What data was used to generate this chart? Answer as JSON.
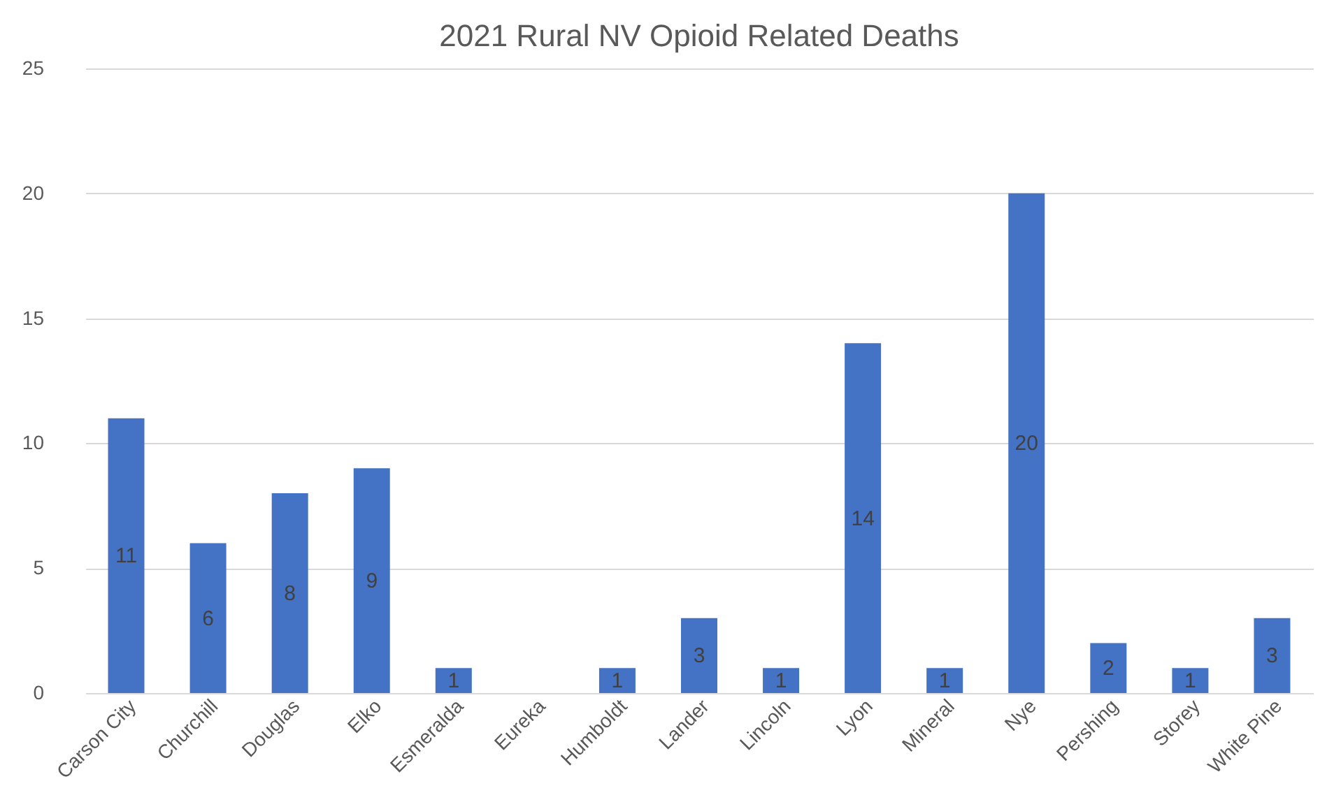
{
  "chart_data": {
    "type": "bar",
    "title": "2021 Rural NV Opioid Related Deaths",
    "categories": [
      "Carson City",
      "Churchill",
      "Douglas",
      "Elko",
      "Esmeralda",
      "Eureka",
      "Humboldt",
      "Lander",
      "Lincoln",
      "Lyon",
      "Mineral",
      "Nye",
      "Pershing",
      "Storey",
      "White Pine"
    ],
    "values": [
      11,
      6,
      8,
      9,
      1,
      null,
      1,
      3,
      1,
      14,
      1,
      20,
      2,
      1,
      3
    ],
    "color": "#4472c4",
    "ylim": [
      0,
      25
    ],
    "yticks": [
      0,
      5,
      10,
      15,
      20,
      25
    ],
    "grid": "y",
    "data_labels": true
  }
}
